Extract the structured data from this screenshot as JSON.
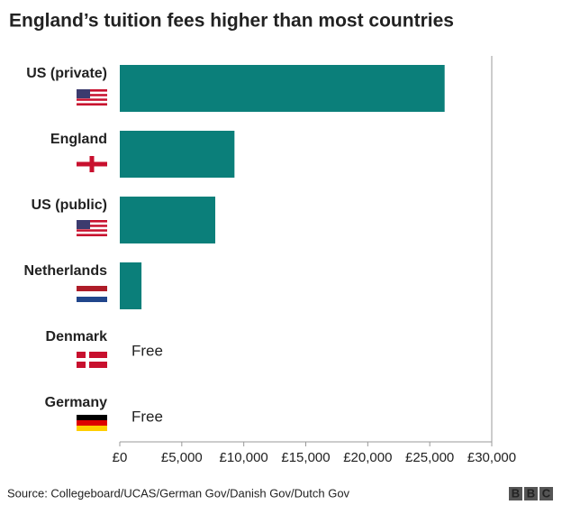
{
  "chart_data": {
    "type": "bar",
    "orientation": "horizontal",
    "title": "England’s tuition fees higher than most countries",
    "categories": [
      "US (private)",
      "England",
      "US (public)",
      "Netherlands",
      "Denmark",
      "Germany"
    ],
    "values": [
      26200,
      9250,
      7700,
      1750,
      0,
      0
    ],
    "value_labels": [
      null,
      null,
      null,
      null,
      "Free",
      "Free"
    ],
    "color": "#0b7f7a",
    "xlim": [
      0,
      30000
    ],
    "xticks": [
      {
        "value": 0,
        "label": "£0"
      },
      {
        "value": 5000,
        "label": "£5,000"
      },
      {
        "value": 10000,
        "label": "£10,000"
      },
      {
        "value": 15000,
        "label": "£15,000"
      },
      {
        "value": 20000,
        "label": "£20,000"
      },
      {
        "value": 25000,
        "label": "£25,000"
      },
      {
        "value": 30000,
        "label": "£30,000"
      }
    ],
    "grid": false,
    "source": "Source: Collegeboard/UCAS/German Gov/Danish Gov/Dutch Gov",
    "logo": [
      "B",
      "B",
      "C"
    ]
  }
}
